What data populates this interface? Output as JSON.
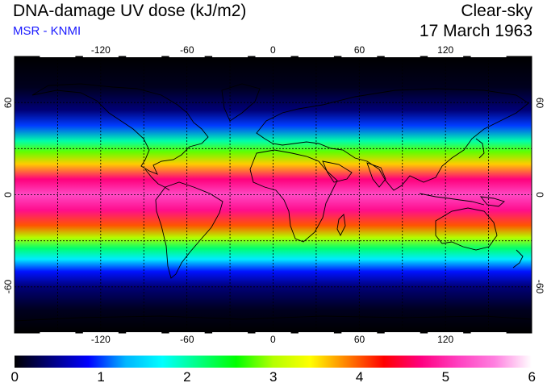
{
  "header": {
    "title": "DNA-damage UV dose (kJ/m2)",
    "subtitle": "MSR - KNMI",
    "product": "Clear-sky",
    "date": "17 March 1963"
  },
  "map": {
    "lon_range": [
      -180,
      180
    ],
    "lat_range": [
      -90,
      90
    ],
    "lon_ticks": [
      "-120",
      "-60",
      "0",
      "60",
      "120"
    ],
    "lat_ticks": [
      "60",
      "0",
      "-60"
    ],
    "gridlines": "dashed",
    "grid_lons": [
      -150,
      -120,
      -90,
      -60,
      -30,
      0,
      30,
      60,
      90,
      120,
      150
    ],
    "grid_lats": [
      -60,
      -30,
      0,
      30,
      60
    ],
    "dose_profile": [
      {
        "lat": -90,
        "value": 0.0
      },
      {
        "lat": -75,
        "value": 0.1
      },
      {
        "lat": -60,
        "value": 0.4
      },
      {
        "lat": -50,
        "value": 0.9
      },
      {
        "lat": -42,
        "value": 1.6
      },
      {
        "lat": -35,
        "value": 2.2
      },
      {
        "lat": -28,
        "value": 3.0
      },
      {
        "lat": -20,
        "value": 4.0
      },
      {
        "lat": -10,
        "value": 4.8
      },
      {
        "lat": 0,
        "value": 5.2
      },
      {
        "lat": 10,
        "value": 4.7
      },
      {
        "lat": 20,
        "value": 3.6
      },
      {
        "lat": 28,
        "value": 2.8
      },
      {
        "lat": 35,
        "value": 2.0
      },
      {
        "lat": 45,
        "value": 1.0
      },
      {
        "lat": 55,
        "value": 0.4
      },
      {
        "lat": 70,
        "value": 0.1
      },
      {
        "lat": 90,
        "value": 0.0
      }
    ],
    "background_color": "#000000",
    "coastline_color": "#000000"
  },
  "colorbar": {
    "min": 0,
    "max": 6,
    "labels": [
      "0",
      "1",
      "2",
      "3",
      "4",
      "5",
      "6"
    ],
    "colors": [
      "#000000",
      "#00007f",
      "#0000ff",
      "#00b4ff",
      "#00ffff",
      "#00ff80",
      "#00ff00",
      "#b4ff00",
      "#ffff00",
      "#ff8000",
      "#ff0000",
      "#ff0080",
      "#ff40c0",
      "#ff80e0",
      "#ffffff"
    ]
  }
}
